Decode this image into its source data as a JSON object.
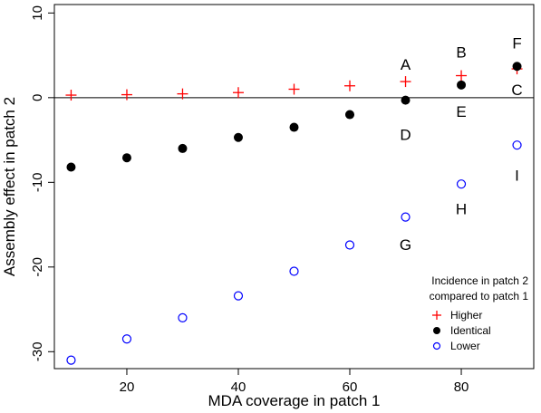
{
  "chart_data": {
    "type": "scatter",
    "xlabel": "MDA coverage in patch 1",
    "ylabel": "Assembly effect in patch 2",
    "xlim": [
      7,
      93
    ],
    "ylim": [
      -32,
      11
    ],
    "x_ticks": [
      20,
      40,
      60,
      80
    ],
    "y_ticks": [
      10,
      0,
      -10,
      -20,
      -30
    ],
    "horizontal_line_at": 0,
    "grid": false,
    "legend": {
      "placement": "bottom-right",
      "title_lines": [
        "Incidence in patch 2",
        "compared to patch 1"
      ],
      "entries": [
        {
          "label": "Higher",
          "series": "higher"
        },
        {
          "label": "Identical",
          "series": "identical"
        },
        {
          "label": "Lower",
          "series": "lower"
        }
      ]
    },
    "series": [
      {
        "key": "higher",
        "marker": "plus",
        "color": "#ff0000",
        "x": [
          10,
          20,
          30,
          40,
          50,
          60,
          70,
          80,
          90
        ],
        "y": [
          0.3,
          0.35,
          0.45,
          0.6,
          1.0,
          1.4,
          1.9,
          2.6,
          3.4
        ]
      },
      {
        "key": "identical",
        "marker": "filled-circle",
        "color": "#000000",
        "x": [
          10,
          20,
          30,
          40,
          50,
          60,
          70,
          80,
          90
        ],
        "y": [
          -8.2,
          -7.1,
          -6.0,
          -4.7,
          -3.5,
          -2.0,
          -0.3,
          1.5,
          3.7
        ]
      },
      {
        "key": "lower",
        "marker": "open-circle",
        "color": "#0000ff",
        "x": [
          10,
          20,
          30,
          40,
          50,
          60,
          70,
          80,
          90
        ],
        "y": [
          -31.0,
          -28.5,
          -26.0,
          -23.4,
          -20.5,
          -17.4,
          -14.1,
          -10.2,
          -5.6
        ]
      }
    ],
    "annotations": [
      {
        "text": "A",
        "x": 70,
        "y": 3.8
      },
      {
        "text": "B",
        "x": 80,
        "y": 5.2
      },
      {
        "text": "C",
        "x": 90,
        "y": 0.8
      },
      {
        "text": "D",
        "x": 70,
        "y": -4.5
      },
      {
        "text": "E",
        "x": 80,
        "y": -1.8
      },
      {
        "text": "F",
        "x": 90,
        "y": 6.3
      },
      {
        "text": "G",
        "x": 70,
        "y": -17.5
      },
      {
        "text": "H",
        "x": 80,
        "y": -13.3
      },
      {
        "text": "I",
        "x": 90,
        "y": -9.3
      }
    ]
  }
}
